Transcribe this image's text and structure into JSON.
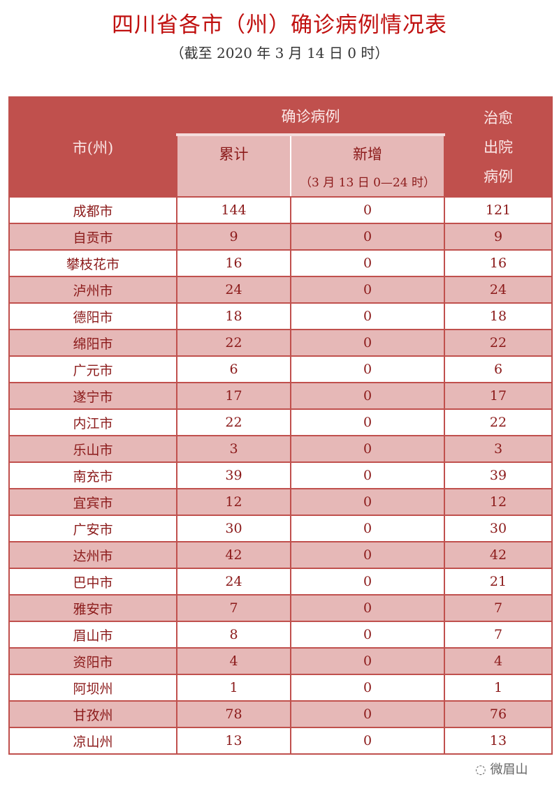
{
  "title": "四川省各市（州）确诊病例情况表",
  "subtitle": "（截至 2020 年 3 月 14 日 0 时）",
  "headers": {
    "city": "市(州)",
    "confirmed": "确诊病例",
    "cumulative": "累计",
    "new": "新增",
    "new_note": "（3 月 13 日 0—24 时）",
    "recovered": "治愈出院病例"
  },
  "rows": [
    [
      "成都市",
      "144",
      "0",
      "121"
    ],
    [
      "自贡市",
      "9",
      "0",
      "9"
    ],
    [
      "攀枝花市",
      "16",
      "0",
      "16"
    ],
    [
      "泸州市",
      "24",
      "0",
      "24"
    ],
    [
      "德阳市",
      "18",
      "0",
      "18"
    ],
    [
      "绵阳市",
      "22",
      "0",
      "22"
    ],
    [
      "广元市",
      "6",
      "0",
      "6"
    ],
    [
      "遂宁市",
      "17",
      "0",
      "17"
    ],
    [
      "内江市",
      "22",
      "0",
      "22"
    ],
    [
      "乐山市",
      "3",
      "0",
      "3"
    ],
    [
      "南充市",
      "39",
      "0",
      "39"
    ],
    [
      "宜宾市",
      "12",
      "0",
      "12"
    ],
    [
      "广安市",
      "30",
      "0",
      "30"
    ],
    [
      "达州市",
      "42",
      "0",
      "42"
    ],
    [
      "巴中市",
      "24",
      "0",
      "21"
    ],
    [
      "雅安市",
      "7",
      "0",
      "7"
    ],
    [
      "眉山市",
      "8",
      "0",
      "7"
    ],
    [
      "资阳市",
      "4",
      "0",
      "4"
    ],
    [
      "阿坝州",
      "1",
      "0",
      "1"
    ],
    [
      "甘孜州",
      "78",
      "0",
      "76"
    ],
    [
      "凉山州",
      "13",
      "0",
      "13"
    ]
  ],
  "watermark": "微眉山",
  "colors": {
    "header": "#c0504d",
    "subheader": "#e6b8b7",
    "title": "#c0100f",
    "text": "#8b1a1a"
  }
}
